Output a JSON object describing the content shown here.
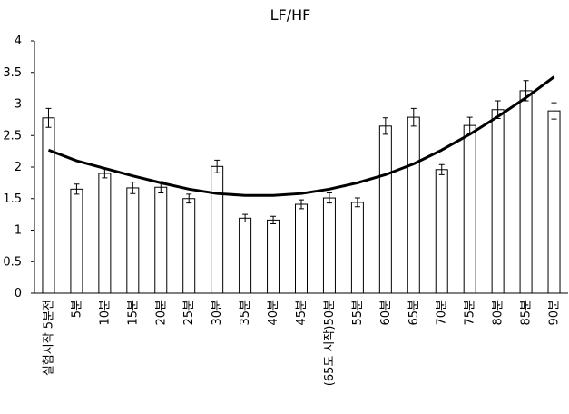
{
  "chart_data": {
    "type": "bar",
    "title": "LF/HF",
    "categories": [
      "실험시작 5분전",
      "5분",
      "10분",
      "15분",
      "20분",
      "25분",
      "30분",
      "35분",
      "40분",
      "45분",
      "(65도 시작)50분",
      "55분",
      "60분",
      "65분",
      "70분",
      "75분",
      "80분",
      "85분",
      "90분"
    ],
    "values": [
      2.78,
      1.65,
      1.9,
      1.67,
      1.68,
      1.5,
      2.01,
      1.19,
      1.16,
      1.41,
      1.51,
      1.44,
      2.65,
      2.79,
      1.96,
      2.66,
      2.91,
      3.21,
      2.89
    ],
    "errors": [
      0.15,
      0.08,
      0.07,
      0.09,
      0.09,
      0.07,
      0.1,
      0.06,
      0.06,
      0.07,
      0.08,
      0.07,
      0.13,
      0.14,
      0.08,
      0.13,
      0.14,
      0.16,
      0.13
    ],
    "trend_values": [
      2.27,
      2.1,
      1.98,
      1.86,
      1.75,
      1.65,
      1.58,
      1.55,
      1.55,
      1.58,
      1.65,
      1.75,
      1.88,
      2.05,
      2.27,
      2.52,
      2.8,
      3.1,
      3.43
    ],
    "color": "#ffffff",
    "ylim": [
      0,
      4
    ],
    "yticks": [
      0,
      0.5,
      1,
      1.5,
      2,
      2.5,
      3,
      3.5,
      4
    ],
    "grid": false
  }
}
